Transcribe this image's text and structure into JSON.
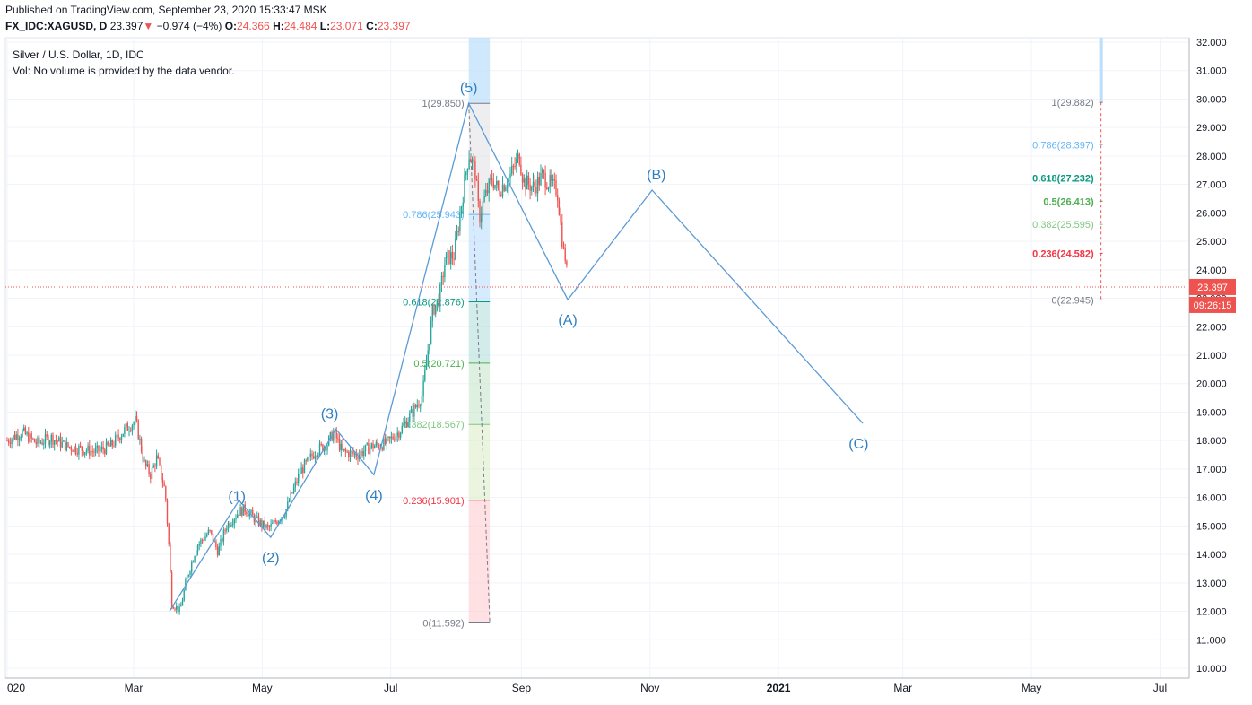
{
  "header": {
    "published": "Published on TradingView.com, September 23, 2020 15:33:47 MSK",
    "symbol": "FX_IDC:XAGUSD, D",
    "last": "23.397",
    "change": "−0.974 (−4%)",
    "o_label": "O:",
    "o": "24.366",
    "h_label": "H:",
    "h": "24.484",
    "l_label": "L:",
    "l": "23.071",
    "c_label": "C:",
    "c": "23.397"
  },
  "legend": {
    "title": "Silver / U.S. Dollar, 1D, IDC",
    "volume_note": "Vol: No volume is provided by the data vendor."
  },
  "price_tag": {
    "price": "23.397",
    "countdown": "09:26:15"
  },
  "colors": {
    "up": "#26a69a",
    "down": "#ef5350",
    "wave": "#5b9bd5",
    "grid": "#f0f3fa"
  },
  "chart_data": {
    "type": "candlestick",
    "y_range": [
      9.6,
      32.2
    ],
    "y_ticks": [
      "32.000",
      "31.000",
      "30.000",
      "29.000",
      "28.000",
      "27.000",
      "26.000",
      "25.000",
      "24.000",
      "23.000",
      "22.000",
      "21.000",
      "20.000",
      "19.000",
      "18.000",
      "17.000",
      "16.000",
      "15.000",
      "14.000",
      "13.000",
      "12.000",
      "11.000",
      "10.000"
    ],
    "x_ticks": [
      {
        "label": "020",
        "date": "2020-01-01"
      },
      {
        "label": "Mar",
        "date": "2020-03-01"
      },
      {
        "label": "May",
        "date": "2020-05-01"
      },
      {
        "label": "Jul",
        "date": "2020-07-01"
      },
      {
        "label": "Sep",
        "date": "2020-09-01"
      },
      {
        "label": "Nov",
        "date": "2020-11-01"
      },
      {
        "label": "2021",
        "date": "2021-01-01",
        "bold": true
      },
      {
        "label": "Mar",
        "date": "2021-03-01"
      },
      {
        "label": "May",
        "date": "2021-05-01"
      },
      {
        "label": "Jul",
        "date": "2021-07-01"
      }
    ],
    "price_path": [
      [
        "2020-01-01",
        18.0
      ],
      [
        "2020-01-08",
        18.3
      ],
      [
        "2020-01-15",
        17.9
      ],
      [
        "2020-01-22",
        18.1
      ],
      [
        "2020-01-29",
        17.8
      ],
      [
        "2020-02-05",
        17.7
      ],
      [
        "2020-02-12",
        17.6
      ],
      [
        "2020-02-19",
        17.8
      ],
      [
        "2020-02-26",
        18.4
      ],
      [
        "2020-03-02",
        18.7
      ],
      [
        "2020-03-06",
        17.2
      ],
      [
        "2020-03-09",
        16.8
      ],
      [
        "2020-03-12",
        17.4
      ],
      [
        "2020-03-16",
        16.2
      ],
      [
        "2020-03-18",
        14.0
      ],
      [
        "2020-03-19",
        12.3
      ],
      [
        "2020-03-23",
        12.0
      ],
      [
        "2020-03-26",
        13.1
      ],
      [
        "2020-03-31",
        14.3
      ],
      [
        "2020-04-06",
        14.8
      ],
      [
        "2020-04-10",
        14.1
      ],
      [
        "2020-04-14",
        15.0
      ],
      [
        "2020-04-20",
        15.5
      ],
      [
        "2020-04-23",
        15.6
      ],
      [
        "2020-04-28",
        15.2
      ],
      [
        "2020-05-04",
        14.9
      ],
      [
        "2020-05-08",
        15.2
      ],
      [
        "2020-05-12",
        15.5
      ],
      [
        "2020-05-19",
        16.9
      ],
      [
        "2020-05-26",
        17.6
      ],
      [
        "2020-06-01",
        17.9
      ],
      [
        "2020-06-04",
        18.3
      ],
      [
        "2020-06-08",
        17.6
      ],
      [
        "2020-06-15",
        17.5
      ],
      [
        "2020-06-22",
        17.8
      ],
      [
        "2020-06-29",
        17.9
      ],
      [
        "2020-07-06",
        18.4
      ],
      [
        "2020-07-13",
        19.2
      ],
      [
        "2020-07-16",
        19.6
      ],
      [
        "2020-07-21",
        22.6
      ],
      [
        "2020-07-24",
        23.0
      ],
      [
        "2020-07-27",
        24.4
      ],
      [
        "2020-07-31",
        24.5
      ],
      [
        "2020-08-03",
        26.0
      ],
      [
        "2020-08-07",
        28.1
      ],
      [
        "2020-08-10",
        27.5
      ],
      [
        "2020-08-12",
        25.8
      ],
      [
        "2020-08-14",
        26.4
      ],
      [
        "2020-08-18",
        27.2
      ],
      [
        "2020-08-21",
        26.8
      ],
      [
        "2020-08-26",
        27.2
      ],
      [
        "2020-08-31",
        28.0
      ],
      [
        "2020-09-02",
        27.1
      ],
      [
        "2020-09-07",
        26.9
      ],
      [
        "2020-09-11",
        27.3
      ],
      [
        "2020-09-16",
        26.9
      ],
      [
        "2020-09-18",
        26.8
      ],
      [
        "2020-09-21",
        24.6
      ],
      [
        "2020-09-22",
        24.4
      ],
      [
        "2020-09-23",
        23.4
      ]
    ],
    "wave_lines": [
      [
        [
          "2020-03-18",
          12.0
        ],
        [
          "2020-04-20",
          15.9
        ],
        [
          "2020-05-05",
          14.6
        ],
        [
          "2020-06-05",
          18.4
        ],
        [
          "2020-06-23",
          16.8
        ],
        [
          "2020-08-07",
          29.85
        ],
        [
          "2020-09-23",
          22.95
        ],
        [
          "2020-11-02",
          26.8
        ],
        [
          "2021-02-10",
          18.6
        ]
      ]
    ],
    "wave_labels": [
      {
        "text": "(1)",
        "date": "2020-04-19",
        "price": 15.5,
        "pos": "above"
      },
      {
        "text": "(2)",
        "date": "2020-05-05",
        "price": 14.6,
        "pos": "below"
      },
      {
        "text": "(3)",
        "date": "2020-06-02",
        "price": 18.4,
        "pos": "above"
      },
      {
        "text": "(4)",
        "date": "2020-06-23",
        "price": 16.8,
        "pos": "below"
      },
      {
        "text": "(5)",
        "date": "2020-08-07",
        "price": 29.85,
        "pos": "above"
      },
      {
        "text": "(A)",
        "date": "2020-09-23",
        "price": 22.95,
        "pos": "below"
      },
      {
        "text": "(B)",
        "date": "2020-11-04",
        "price": 26.8,
        "pos": "above"
      },
      {
        "text": "(C)",
        "date": "2021-02-08",
        "price": 18.6,
        "pos": "below"
      }
    ],
    "fib_retracement_1": {
      "date_start": "2020-08-07",
      "date_end": "2020-08-17",
      "levels": [
        {
          "label": "1(29.850)",
          "price": 29.85,
          "color": "#787b86"
        },
        {
          "label": "0.786(25.943)",
          "price": 25.943,
          "color": "#64b5f6"
        },
        {
          "label": "0.618(22.876)",
          "price": 22.876,
          "color": "#089981"
        },
        {
          "label": "0.5(20.721)",
          "price": 20.721,
          "color": "#4caf50"
        },
        {
          "label": "0.382(18.567)",
          "price": 18.567,
          "color": "#81c784"
        },
        {
          "label": "0.236(15.901)",
          "price": 15.901,
          "color": "#f23645"
        },
        {
          "label": "0(11.592)",
          "price": 11.592,
          "color": "#787b86"
        }
      ]
    },
    "fib_retracement_2": {
      "date": "2021-06-03",
      "levels": [
        {
          "label": "1(29.882)",
          "price": 29.882,
          "color": "#787b86"
        },
        {
          "label": "0.786(28.397)",
          "price": 28.397,
          "color": "#64b5f6"
        },
        {
          "label": "0.618(27.232)",
          "price": 27.232,
          "color": "#089981"
        },
        {
          "label": "0.5(26.413)",
          "price": 26.413,
          "color": "#4caf50"
        },
        {
          "label": "0.382(25.595)",
          "price": 25.595,
          "color": "#81c784"
        },
        {
          "label": "0.236(24.582)",
          "price": 24.582,
          "color": "#f23645"
        },
        {
          "label": "0(22.945)",
          "price": 22.945,
          "color": "#787b86"
        }
      ]
    },
    "current_price": 23.397,
    "grid": true
  }
}
